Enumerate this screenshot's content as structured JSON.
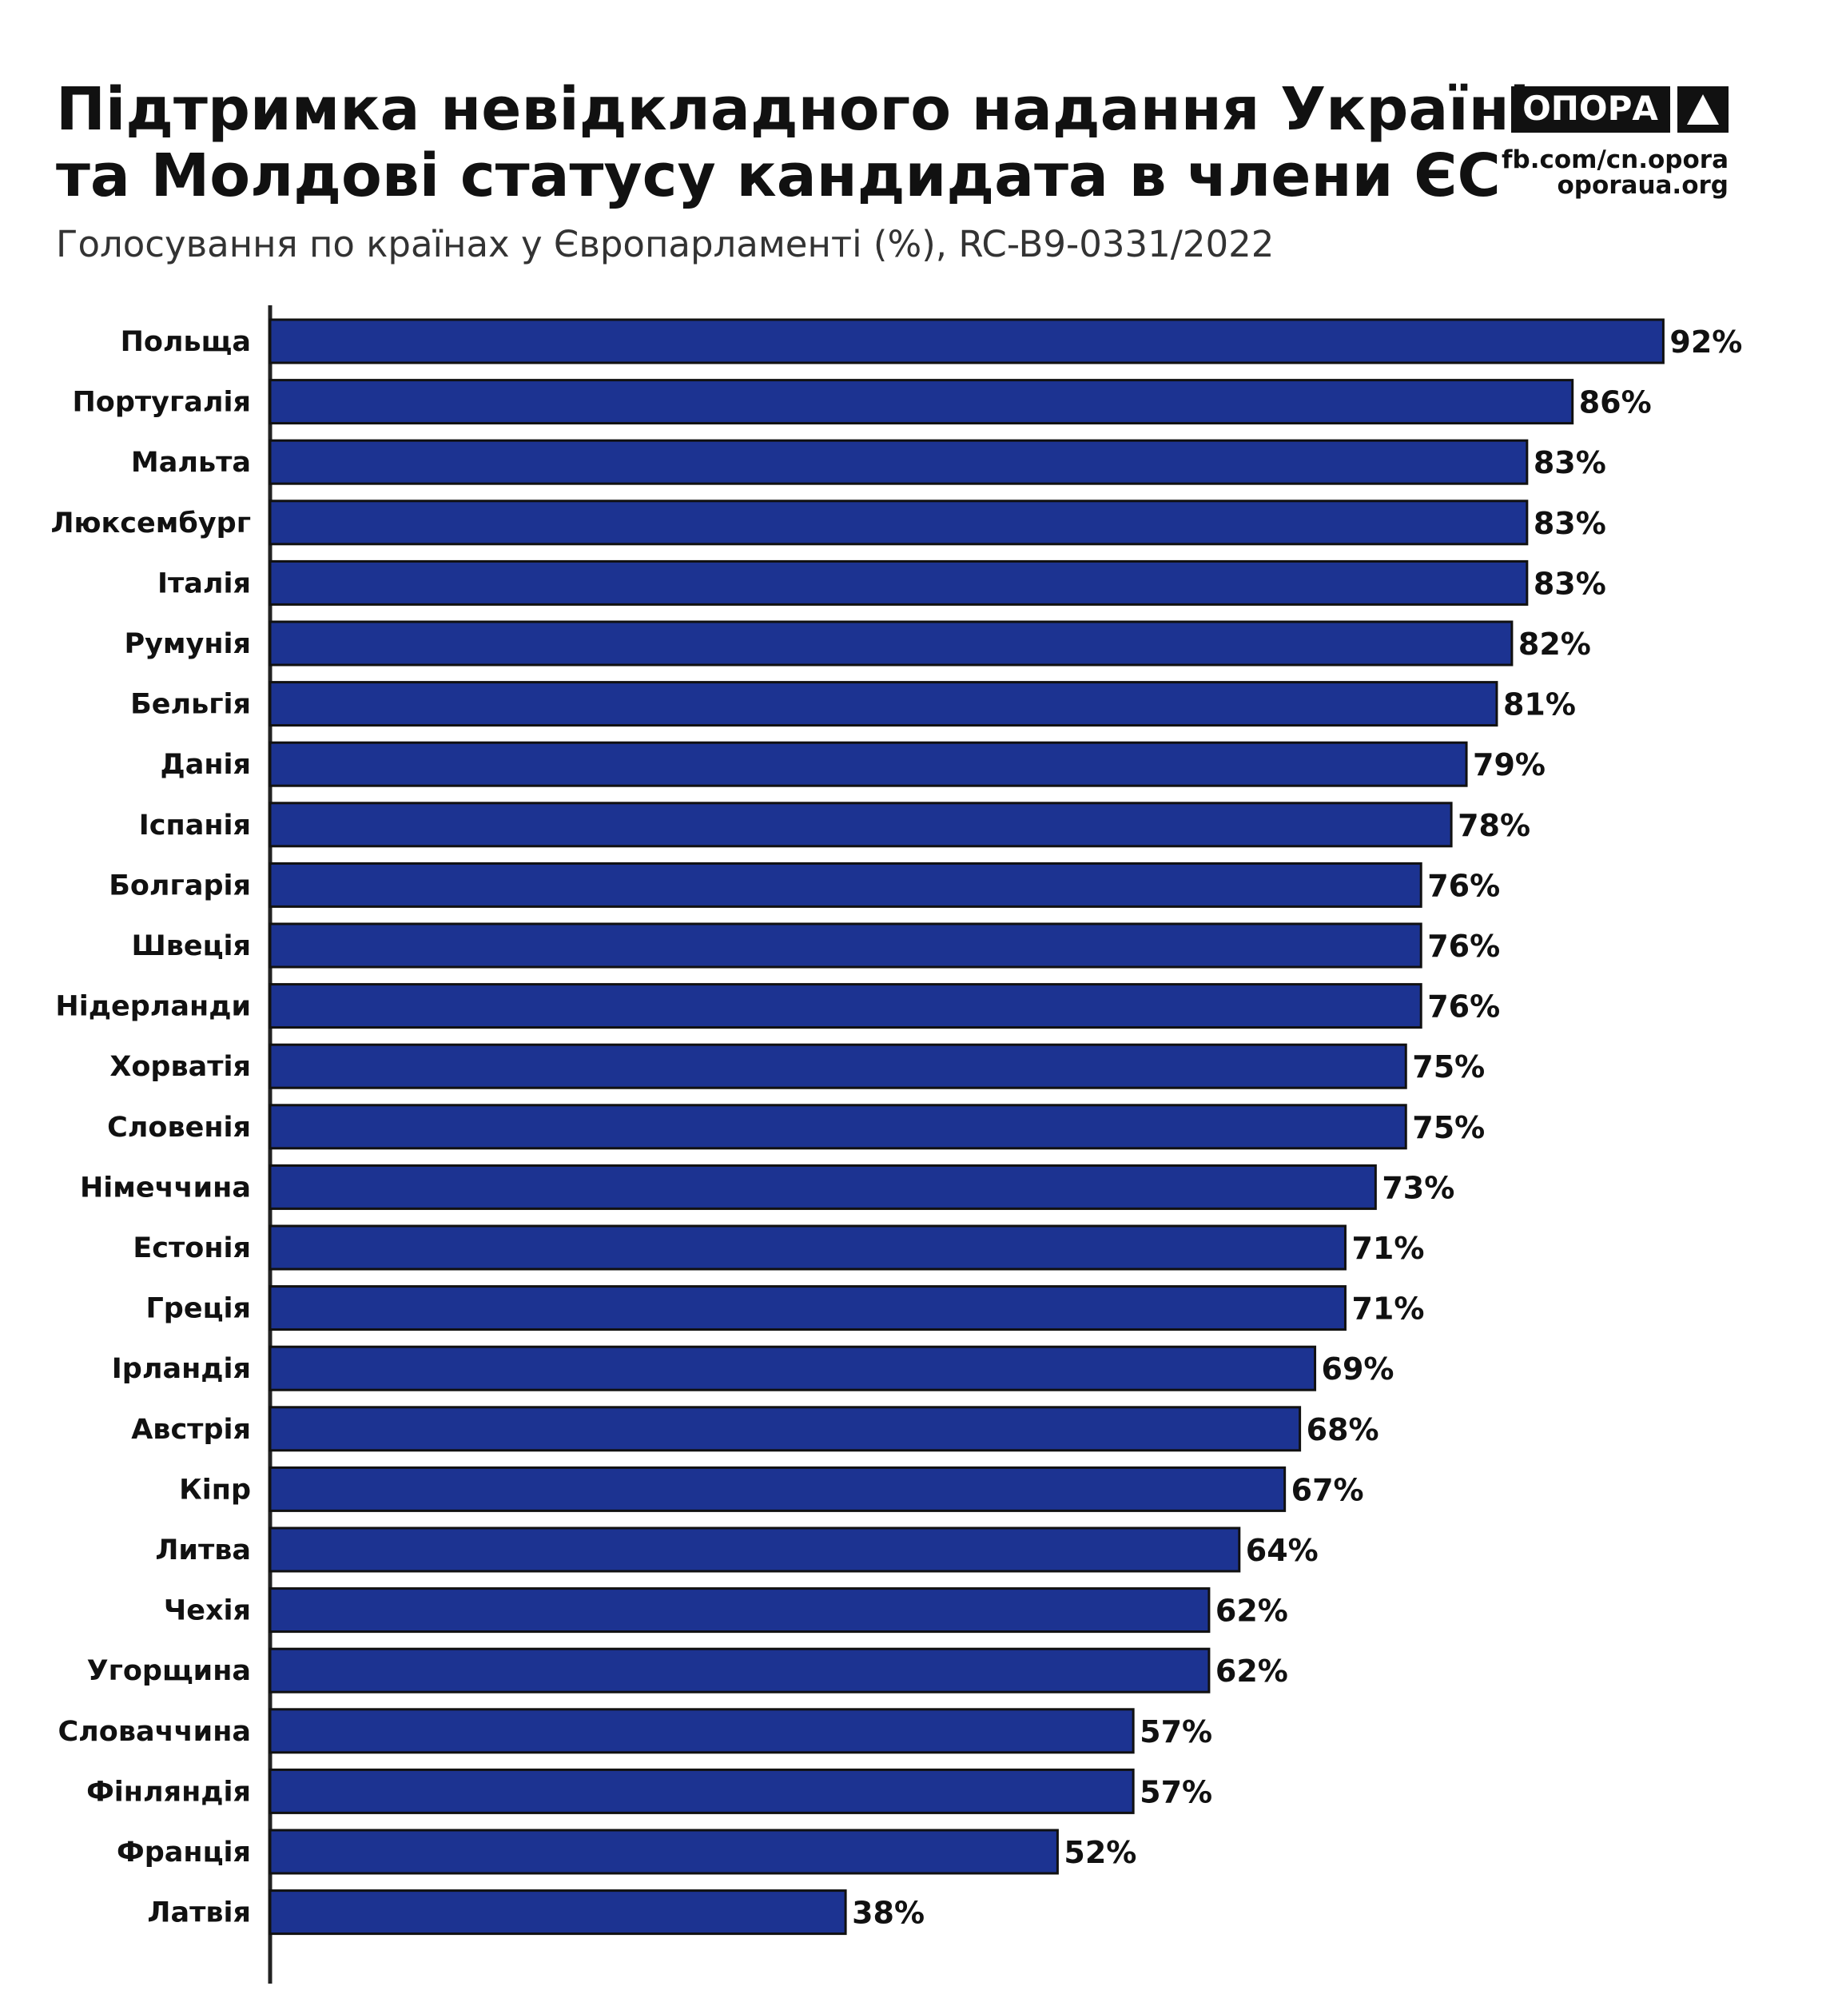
{
  "chart_data": {
    "type": "bar",
    "orientation": "horizontal",
    "title": [
      "Підтримка невідкладного надання Україні",
      "та Молдові статусу кандидата в члени ЄС"
    ],
    "subtitle": "Голосування по країнах у Європарламенті (%), RC-B9-0331/2022",
    "logo": "ОПОРА",
    "source": [
      "fb.com/cn.opora",
      "oporaua.org"
    ],
    "color": "#1c3391",
    "categories": [
      "Польща",
      "Португалія",
      "Мальта",
      "Люксембург",
      "Італія",
      "Румунія",
      "Бельгія",
      "Данія",
      "Іспанія",
      "Болгарія",
      "Швеція",
      "Нідерланди",
      "Хорватія",
      "Словенія",
      "Німеччина",
      "Естонія",
      "Греція",
      "Ірландія",
      "Австрія",
      "Кіпр",
      "Литва",
      "Чехія",
      "Угорщина",
      "Словаччина",
      "Фінляндія",
      "Франція",
      "Латвія"
    ],
    "values": [
      92,
      86,
      83,
      83,
      83,
      82,
      81,
      79,
      78,
      76,
      76,
      76,
      75,
      75,
      73,
      71,
      71,
      69,
      68,
      67,
      64,
      62,
      62,
      57,
      57,
      52,
      38
    ],
    "value_labels": [
      "92%",
      "86%",
      "83%",
      "83%",
      "83%",
      "82%",
      "81%",
      "79%",
      "78%",
      "76%",
      "76%",
      "76%",
      "75%",
      "75%",
      "73%",
      "71%",
      "71%",
      "69%",
      "68%",
      "67%",
      "64%",
      "62%",
      "62%",
      "57%",
      "57%",
      "52%",
      "38%"
    ]
  }
}
